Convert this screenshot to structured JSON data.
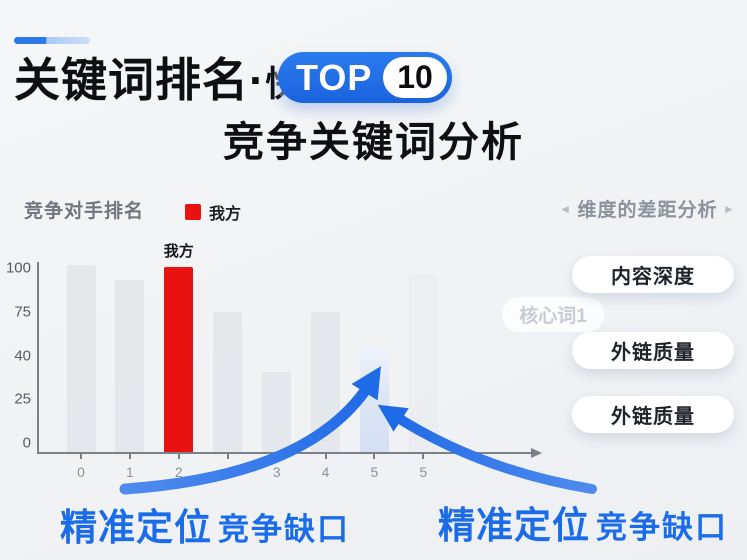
{
  "header": {
    "title_main": "关键词排名",
    "title_dot": "·",
    "title_suffix": "快速",
    "badge": {
      "label": "TOP",
      "number": "10"
    },
    "subtitle": "竞争关键词分析"
  },
  "chart": {
    "panel_title": "竞争对手排名",
    "legend": {
      "label": "我方",
      "color": "#ea1111"
    }
  },
  "chart_data": {
    "type": "bar",
    "title": "竞争对手排名",
    "categories": [
      "0",
      "1",
      "2",
      "",
      "3",
      "4",
      "5",
      "5"
    ],
    "values": [
      100,
      92,
      99,
      75,
      43,
      75,
      56,
      95
    ],
    "series_styles": [
      "gray",
      "gray",
      "self",
      "gray",
      "gray",
      "gray",
      "highlight",
      "ghost"
    ],
    "point_label": {
      "index": 2,
      "text": "我方"
    },
    "x_tick_labels": [
      "0",
      "1",
      "2",
      "",
      "3",
      "4",
      "5",
      "5",
      ""
    ],
    "y_tick_labels": [
      "100",
      "75",
      "40",
      "25",
      "0"
    ],
    "ylim": [
      0,
      100
    ],
    "grid": false,
    "legend_entries": [
      {
        "label": "我方",
        "color": "#ea1111"
      }
    ],
    "legend_position": "top",
    "colors": {
      "gray": "#e2e5e9",
      "self": "#ea1111",
      "highlight": "#dde6f6",
      "ghost": "#e6e9ed"
    }
  },
  "right_panel": {
    "nav_left_icon": "◂",
    "nav_right_icon": "▸",
    "header": "维度的差距分析",
    "faded_tag": "核心词1",
    "items": [
      {
        "label": "内容深度"
      },
      {
        "label": "外链质量"
      },
      {
        "label": "外链质量"
      }
    ]
  },
  "annotations": {
    "left": {
      "strong": "精准定位",
      "rest": "竞争缺口"
    },
    "right": {
      "strong": "精准定位",
      "rest": "竞争缺口"
    }
  },
  "colors": {
    "accent_blue": "#2273e8",
    "annotation_blue": "#1b6ce8",
    "our_red": "#ea1111",
    "background": "#f1f3f5"
  }
}
